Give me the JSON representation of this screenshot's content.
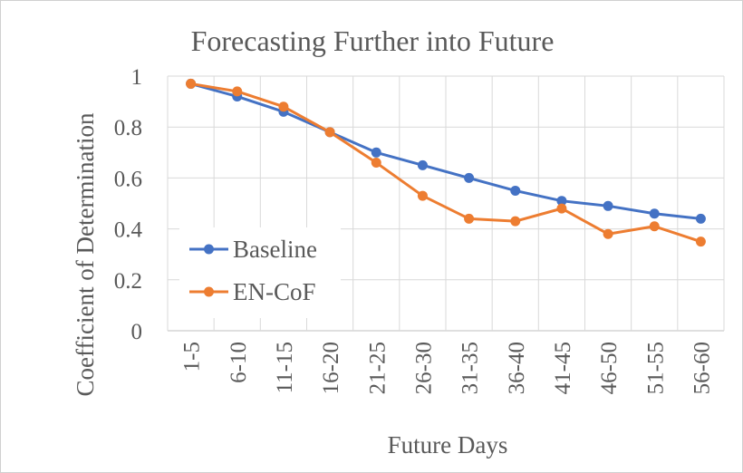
{
  "chart_data": {
    "type": "line",
    "title": "Forecasting Further into Future",
    "xlabel": "Future Days",
    "ylabel": "Coefficient of Determination",
    "categories": [
      "1-5",
      "6-10",
      "11-15",
      "16-20",
      "21-25",
      "26-30",
      "31-35",
      "36-40",
      "41-45",
      "46-50",
      "51-55",
      "56-60"
    ],
    "ylim": [
      0,
      1
    ],
    "yticks": [
      "0",
      "0.2",
      "0.4",
      "0.6",
      "0.8",
      "1"
    ],
    "yticks_values": [
      0,
      0.2,
      0.4,
      0.6,
      0.8,
      1.0
    ],
    "grid": true,
    "legend_position": "bottom-left",
    "series": [
      {
        "name": "Baseline",
        "color": "#4472C4",
        "values": [
          0.97,
          0.92,
          0.86,
          0.78,
          0.7,
          0.65,
          0.6,
          0.55,
          0.51,
          0.49,
          0.46,
          0.44
        ]
      },
      {
        "name": "EN-CoF",
        "color": "#ED7D31",
        "values": [
          0.97,
          0.94,
          0.88,
          0.78,
          0.66,
          0.53,
          0.44,
          0.43,
          0.48,
          0.38,
          0.41,
          0.35
        ]
      }
    ]
  }
}
